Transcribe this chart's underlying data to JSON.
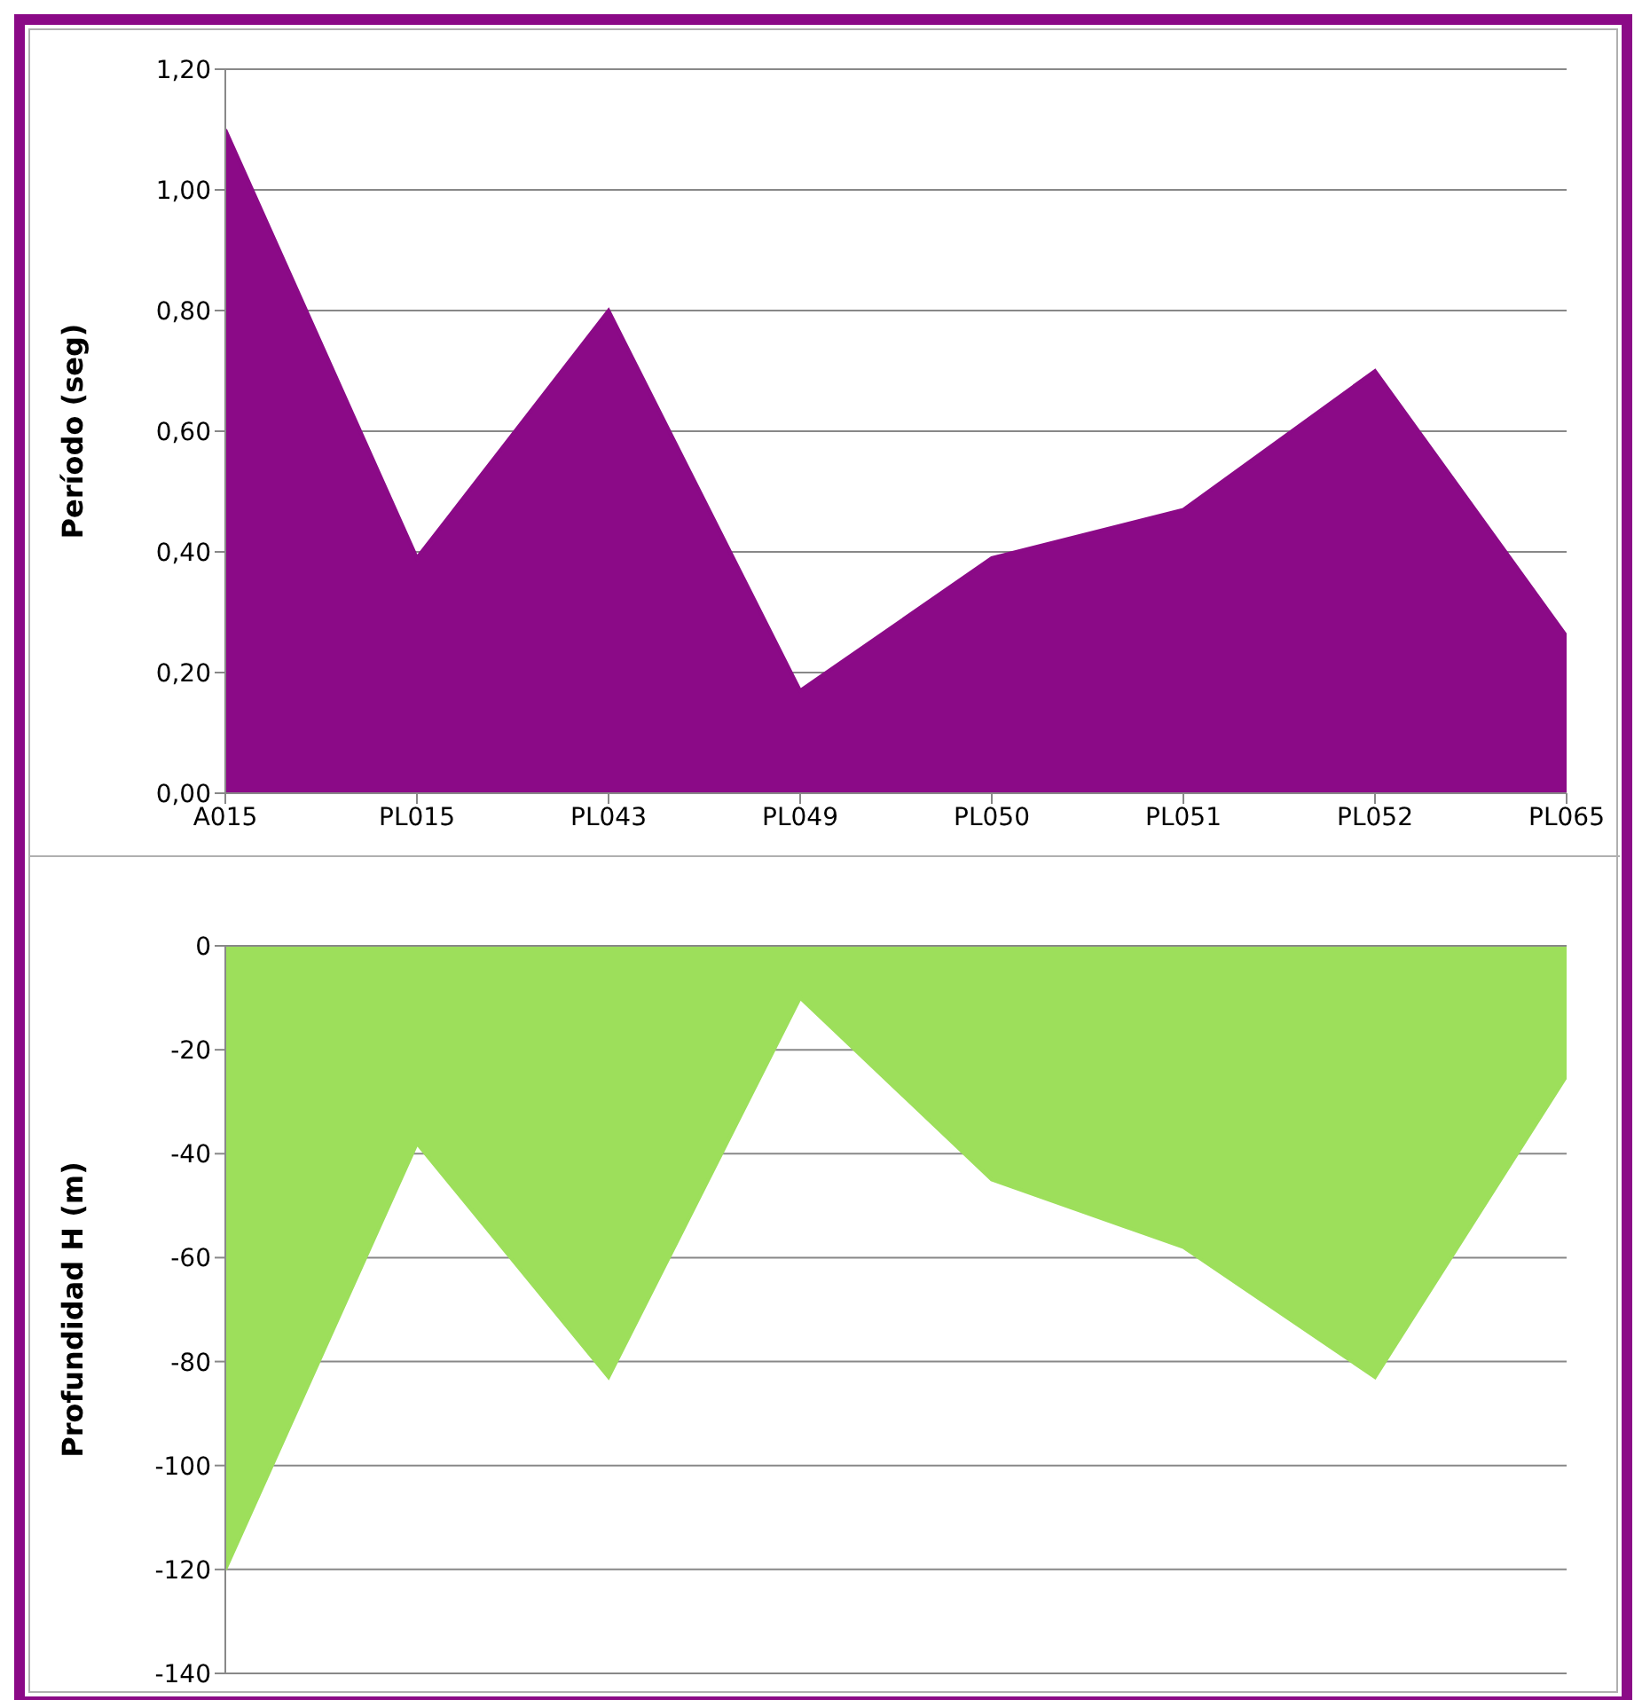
{
  "chart_data": [
    {
      "type": "area",
      "categories": [
        "A015",
        "PL015",
        "PL043",
        "PL049",
        "PL050",
        "PL051",
        "PL052",
        "PL065"
      ],
      "values": [
        1.1,
        0.39,
        0.8,
        0.17,
        0.39,
        0.47,
        0.7,
        0.26
      ],
      "color": "#8b0a87",
      "ylabel": "Período (seg)",
      "ylim": [
        0,
        1.2
      ],
      "yticks": [
        {
          "value": 0,
          "label": "0,00"
        },
        {
          "value": 0.2,
          "label": "0,20"
        },
        {
          "value": 0.4,
          "label": "0,40"
        },
        {
          "value": 0.6,
          "label": "0,60"
        },
        {
          "value": 0.8,
          "label": "0,80"
        },
        {
          "value": 1.0,
          "label": "1,00"
        },
        {
          "value": 1.2,
          "label": "1,20"
        }
      ],
      "grid": "y"
    },
    {
      "type": "area",
      "categories": [
        null,
        null,
        null,
        null,
        null,
        null,
        null,
        null
      ],
      "values": [
        -120,
        -38,
        -83,
        -10,
        -45,
        -58,
        -83,
        -25
      ],
      "color": "#9ddf5b",
      "ylabel": "Profundidad H (m)",
      "ylim": [
        -140,
        0
      ],
      "yticks": [
        -140,
        -120,
        -100,
        -80,
        -60,
        -40,
        -20,
        0
      ],
      "grid": "y",
      "tick_labels": "y"
    }
  ]
}
